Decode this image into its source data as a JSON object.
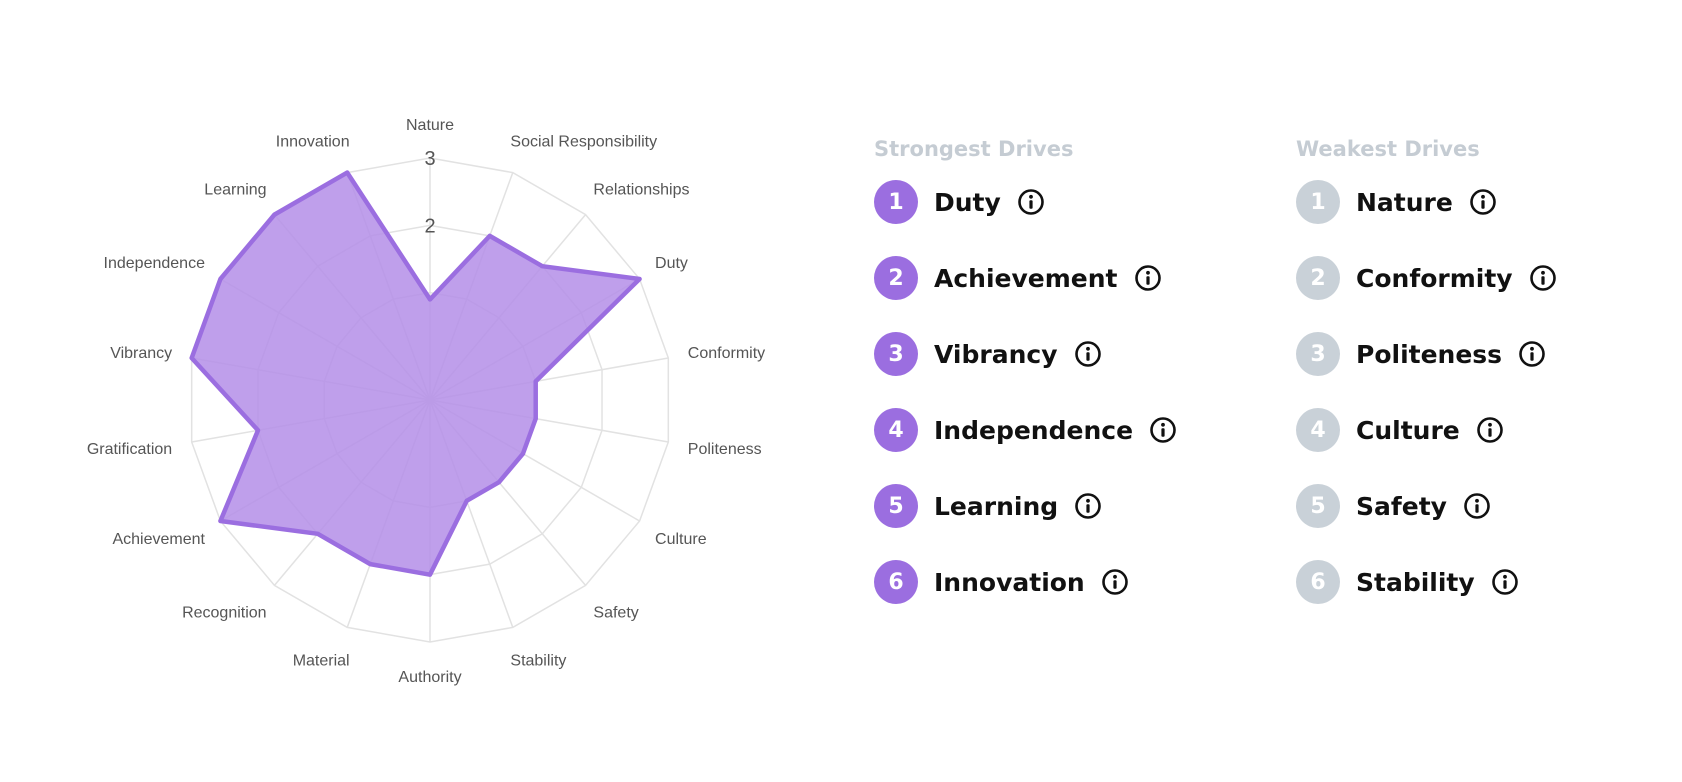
{
  "chart_data": {
    "type": "radar",
    "axes": [
      "Nature",
      "Social Responsibility",
      "Relationships",
      "Duty",
      "Conformity",
      "Politeness",
      "Culture",
      "Safety",
      "Stability",
      "Authority",
      "Material",
      "Recognition",
      "Achievement",
      "Gratification",
      "Vibrancy",
      "Independence",
      "Learning",
      "Innovation"
    ],
    "values": [
      0.9,
      2.0,
      2.0,
      3.0,
      1.0,
      1.0,
      1.0,
      1.0,
      1.0,
      2.0,
      2.0,
      2.0,
      3.0,
      2.0,
      3.0,
      3.0,
      3.0,
      3.0
    ],
    "rmin": 0,
    "rmax": 3,
    "ticks": [
      1,
      2,
      3
    ],
    "tick_labels": [
      "",
      "2",
      "3"
    ],
    "series_color": "#9b6ee0",
    "fill_color": "#b48ee8",
    "grid_color": "#e2e2e2"
  },
  "strongest": {
    "title": "Strongest Drives",
    "badge_color": "#9b6ee0",
    "items": [
      {
        "rank": "1",
        "name": "Duty"
      },
      {
        "rank": "2",
        "name": "Achievement"
      },
      {
        "rank": "3",
        "name": "Vibrancy"
      },
      {
        "rank": "4",
        "name": "Independence"
      },
      {
        "rank": "5",
        "name": "Learning"
      },
      {
        "rank": "6",
        "name": "Innovation"
      }
    ]
  },
  "weakest": {
    "title": "Weakest Drives",
    "badge_color": "#c9d1d8",
    "items": [
      {
        "rank": "1",
        "name": "Nature"
      },
      {
        "rank": "2",
        "name": "Conformity"
      },
      {
        "rank": "3",
        "name": "Politeness"
      },
      {
        "rank": "4",
        "name": "Culture"
      },
      {
        "rank": "5",
        "name": "Safety"
      },
      {
        "rank": "6",
        "name": "Stability"
      }
    ]
  },
  "icons": {
    "info": "info-icon"
  }
}
